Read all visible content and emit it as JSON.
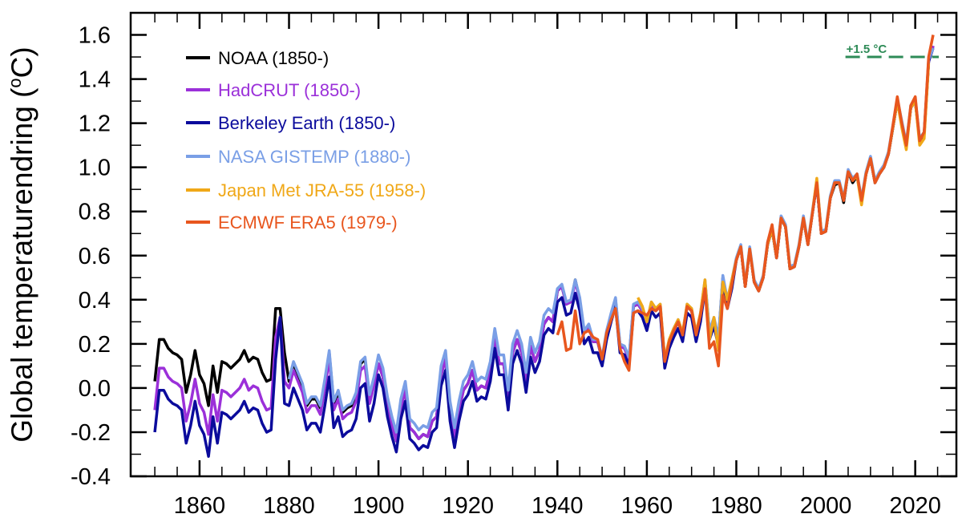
{
  "chart_data": {
    "type": "line",
    "title": "",
    "xlabel": "",
    "ylabel": "Global temperaturendring (",
    "ylabel_unit_sup": "o",
    "ylabel_unit": "C)",
    "xlim": [
      1844.6,
      2029.2
    ],
    "ylim": [
      -0.4,
      1.7
    ],
    "grid": false,
    "legend_position": "top-left",
    "x_ticks": [
      1860,
      1880,
      1900,
      1920,
      1940,
      1960,
      1980,
      2000,
      2020
    ],
    "x_tick_labels": [
      "1860",
      "1880",
      "1900",
      "1920",
      "1940",
      "1960",
      "1980",
      "2000",
      "2020"
    ],
    "y_ticks": [
      -0.4,
      -0.2,
      0.0,
      0.2,
      0.4,
      0.6,
      0.8,
      1.0,
      1.2,
      1.4,
      1.6
    ],
    "y_tick_labels": [
      "-0.4",
      "-0.2",
      "0.0",
      "0.2",
      "0.4",
      "0.6",
      "0.8",
      "1.0",
      "1.2",
      "1.4",
      "1.6"
    ],
    "annotation": {
      "text": "+1.5 °C",
      "y": 1.5,
      "x_start": 2004.4,
      "color": "#2e8b57"
    },
    "series": [
      {
        "name": "NOAA (1850-)",
        "color": "#000000",
        "start_year": 1850,
        "values": [
          0.03,
          0.22,
          0.22,
          0.18,
          0.16,
          0.15,
          0.13,
          -0.02,
          0.06,
          0.17,
          0.06,
          0.02,
          -0.08,
          0.1,
          -0.02,
          0.12,
          0.11,
          0.09,
          0.11,
          0.13,
          0.17,
          0.12,
          0.14,
          0.13,
          0.07,
          0.03,
          0.04,
          0.36,
          0.36,
          0.16,
          0.03,
          0.11,
          0.06,
          0.01,
          -0.08,
          -0.05,
          -0.05,
          -0.09,
          0.03,
          0.16,
          -0.07,
          -0.02,
          -0.11,
          -0.09,
          -0.08,
          -0.03,
          0.11,
          0.13,
          -0.04,
          0.04,
          0.11,
          0.05,
          -0.08,
          -0.17,
          -0.24,
          -0.09,
          -0.01,
          -0.18,
          -0.2,
          -0.23,
          -0.21,
          -0.22,
          -0.15,
          -0.13,
          0.06,
          0.13,
          -0.1,
          -0.22,
          -0.1,
          -0.01,
          0.02,
          0.08,
          -0.01,
          0.01,
          0.0,
          0.08,
          0.23,
          0.11,
          0.11,
          -0.05,
          0.16,
          0.22,
          0.16,
          0.03,
          0.19,
          0.12,
          0.17,
          0.29,
          0.32,
          0.3,
          0.44,
          0.46,
          0.38,
          0.39,
          0.49,
          0.4,
          0.25,
          0.28,
          0.21,
          0.21,
          0.13,
          0.25,
          0.33,
          0.4,
          0.19,
          0.18,
          0.13,
          0.37,
          0.38,
          0.35,
          0.29,
          0.38,
          0.35,
          0.37,
          0.12,
          0.21,
          0.26,
          0.3,
          0.24,
          0.37,
          0.35,
          0.24,
          0.33,
          0.48,
          0.25,
          0.31,
          0.22,
          0.5,
          0.39,
          0.48,
          0.58,
          0.64,
          0.46,
          0.63,
          0.48,
          0.44,
          0.5,
          0.65,
          0.72,
          0.59,
          0.77,
          0.73,
          0.54,
          0.55,
          0.64,
          0.77,
          0.65,
          0.79,
          0.93,
          0.7,
          0.71,
          0.86,
          0.92,
          0.93,
          0.84,
          0.98,
          0.93,
          0.96,
          0.85,
          0.97,
          1.04,
          0.93,
          0.97,
          1.0,
          1.06,
          1.18,
          1.3,
          1.2,
          1.1,
          1.27,
          1.3,
          1.12,
          1.15,
          1.48,
          1.55
        ]
      },
      {
        "name": "HadCRUT (1850-)",
        "color": "#9b30d9",
        "start_year": 1850,
        "values": [
          -0.1,
          0.09,
          0.09,
          0.05,
          0.03,
          0.02,
          0.0,
          -0.15,
          -0.07,
          0.04,
          -0.07,
          -0.11,
          -0.21,
          -0.03,
          -0.15,
          -0.01,
          -0.02,
          -0.04,
          -0.02,
          0.0,
          0.04,
          -0.01,
          0.01,
          0.0,
          -0.06,
          -0.1,
          -0.09,
          0.23,
          0.32,
          0.03,
          0.0,
          0.08,
          0.03,
          -0.02,
          -0.11,
          -0.08,
          -0.08,
          -0.12,
          0.0,
          0.13,
          -0.1,
          -0.05,
          -0.14,
          -0.12,
          -0.11,
          -0.06,
          0.08,
          0.1,
          -0.07,
          0.01,
          0.11,
          0.05,
          -0.08,
          -0.17,
          -0.24,
          -0.09,
          -0.01,
          -0.18,
          -0.2,
          -0.23,
          -0.21,
          -0.22,
          -0.15,
          -0.13,
          0.06,
          0.13,
          -0.1,
          -0.22,
          -0.1,
          -0.01,
          0.02,
          0.08,
          -0.01,
          0.01,
          0.0,
          0.08,
          0.23,
          0.11,
          0.11,
          -0.05,
          0.16,
          0.22,
          0.16,
          0.03,
          0.19,
          0.12,
          0.17,
          0.29,
          0.32,
          0.3,
          0.44,
          0.46,
          0.38,
          0.39,
          0.48,
          0.4,
          0.25,
          0.28,
          0.21,
          0.21,
          0.13,
          0.25,
          0.33,
          0.4,
          0.19,
          0.18,
          0.13,
          0.37,
          0.38,
          0.35,
          0.29,
          0.38,
          0.35,
          0.37,
          0.12,
          0.21,
          0.26,
          0.3,
          0.24,
          0.37,
          0.35,
          0.24,
          0.33,
          0.48,
          0.25,
          0.31,
          0.22,
          0.5,
          0.39,
          0.48,
          0.58,
          0.64,
          0.46,
          0.63,
          0.48,
          0.44,
          0.5,
          0.65,
          0.72,
          0.59,
          0.77,
          0.73,
          0.54,
          0.55,
          0.64,
          0.77,
          0.65,
          0.79,
          0.93,
          0.7,
          0.71,
          0.86,
          0.93,
          0.93,
          0.85,
          0.98,
          0.94,
          0.96,
          0.85,
          0.97,
          1.04,
          0.93,
          0.97,
          1.0,
          1.06,
          1.18,
          1.3,
          1.2,
          1.1,
          1.27,
          1.3,
          1.12,
          1.15,
          1.48,
          1.55
        ]
      },
      {
        "name": "Berkeley Earth (1850-)",
        "color": "#0b0b9c",
        "start_year": 1850,
        "values": [
          -0.2,
          -0.01,
          -0.01,
          -0.05,
          -0.07,
          -0.08,
          -0.1,
          -0.25,
          -0.17,
          -0.06,
          -0.17,
          -0.21,
          -0.31,
          -0.13,
          -0.25,
          -0.11,
          -0.12,
          -0.14,
          -0.12,
          -0.1,
          -0.06,
          -0.11,
          -0.09,
          -0.1,
          -0.16,
          -0.2,
          -0.19,
          0.13,
          0.32,
          -0.07,
          -0.08,
          0.0,
          -0.05,
          -0.1,
          -0.19,
          -0.16,
          -0.16,
          -0.2,
          -0.08,
          0.05,
          -0.18,
          -0.13,
          -0.22,
          -0.2,
          -0.19,
          -0.14,
          0.0,
          0.02,
          -0.15,
          -0.07,
          0.06,
          0.0,
          -0.13,
          -0.22,
          -0.29,
          -0.14,
          -0.06,
          -0.23,
          -0.25,
          -0.28,
          -0.26,
          -0.27,
          -0.2,
          -0.18,
          0.01,
          0.08,
          -0.15,
          -0.27,
          -0.15,
          -0.06,
          -0.03,
          0.03,
          -0.06,
          -0.04,
          -0.05,
          0.03,
          0.18,
          0.06,
          0.06,
          -0.1,
          0.11,
          0.17,
          0.11,
          -0.02,
          0.14,
          0.07,
          0.12,
          0.24,
          0.27,
          0.25,
          0.39,
          0.41,
          0.33,
          0.34,
          0.43,
          0.35,
          0.2,
          0.23,
          0.16,
          0.16,
          0.1,
          0.22,
          0.3,
          0.37,
          0.16,
          0.15,
          0.1,
          0.34,
          0.35,
          0.32,
          0.26,
          0.35,
          0.32,
          0.34,
          0.09,
          0.18,
          0.23,
          0.27,
          0.21,
          0.34,
          0.32,
          0.21,
          0.3,
          0.45,
          0.22,
          0.28,
          0.19,
          0.47,
          0.36,
          0.45,
          0.58,
          0.64,
          0.46,
          0.63,
          0.48,
          0.44,
          0.5,
          0.65,
          0.72,
          0.59,
          0.77,
          0.73,
          0.54,
          0.55,
          0.64,
          0.77,
          0.65,
          0.79,
          0.93,
          0.7,
          0.71,
          0.86,
          0.93,
          0.93,
          0.85,
          0.98,
          0.94,
          0.96,
          0.85,
          0.97,
          1.04,
          0.93,
          0.97,
          1.0,
          1.06,
          1.18,
          1.3,
          1.2,
          1.1,
          1.27,
          1.3,
          1.12,
          1.15,
          1.48,
          1.54
        ]
      },
      {
        "name": "NASA GISTEMP (1880-)",
        "color": "#7a9fe6",
        "start_year": 1880,
        "values": [
          0.04,
          0.12,
          0.07,
          0.02,
          -0.07,
          -0.04,
          -0.04,
          -0.08,
          0.04,
          0.17,
          -0.06,
          -0.01,
          -0.1,
          -0.08,
          -0.07,
          -0.02,
          0.12,
          0.14,
          -0.03,
          0.05,
          0.15,
          0.09,
          -0.04,
          -0.13,
          -0.2,
          -0.05,
          0.03,
          -0.14,
          -0.16,
          -0.19,
          -0.17,
          -0.18,
          -0.11,
          -0.09,
          0.1,
          0.17,
          -0.06,
          -0.18,
          -0.06,
          0.03,
          0.06,
          0.12,
          0.03,
          0.05,
          0.04,
          0.12,
          0.27,
          0.15,
          0.15,
          -0.01,
          0.2,
          0.26,
          0.2,
          0.07,
          0.23,
          0.16,
          0.21,
          0.33,
          0.36,
          0.34,
          0.45,
          0.47,
          0.39,
          0.4,
          0.49,
          0.41,
          0.26,
          0.29,
          0.22,
          0.22,
          0.14,
          0.26,
          0.34,
          0.41,
          0.2,
          0.19,
          0.14,
          0.38,
          0.39,
          0.36,
          0.3,
          0.39,
          0.36,
          0.38,
          0.13,
          0.22,
          0.27,
          0.31,
          0.25,
          0.38,
          0.36,
          0.25,
          0.34,
          0.49,
          0.26,
          0.32,
          0.23,
          0.51,
          0.4,
          0.49,
          0.59,
          0.65,
          0.47,
          0.64,
          0.49,
          0.45,
          0.51,
          0.66,
          0.73,
          0.6,
          0.78,
          0.74,
          0.55,
          0.56,
          0.65,
          0.78,
          0.66,
          0.8,
          0.94,
          0.71,
          0.72,
          0.87,
          0.94,
          0.94,
          0.86,
          0.99,
          0.95,
          0.97,
          0.86,
          0.98,
          1.05,
          0.94,
          0.98,
          1.01,
          1.07,
          1.19,
          1.31,
          1.21,
          1.11,
          1.28,
          1.31,
          1.13,
          1.16,
          1.49,
          1.54
        ]
      },
      {
        "name": "Japan Met JRA-55 (1958-)",
        "color": "#f0a818",
        "start_year": 1958,
        "values": [
          0.41,
          0.37,
          0.3,
          0.39,
          0.36,
          0.38,
          0.13,
          0.22,
          0.27,
          0.31,
          0.25,
          0.38,
          0.36,
          0.25,
          0.34,
          0.49,
          0.22,
          0.32,
          0.17,
          0.48,
          0.4,
          0.49,
          0.58,
          0.64,
          0.46,
          0.63,
          0.48,
          0.44,
          0.5,
          0.65,
          0.72,
          0.59,
          0.77,
          0.73,
          0.54,
          0.55,
          0.64,
          0.77,
          0.65,
          0.79,
          0.95,
          0.7,
          0.71,
          0.86,
          0.93,
          0.93,
          0.85,
          0.98,
          0.94,
          0.96,
          0.83,
          0.97,
          1.04,
          0.93,
          0.97,
          1.0,
          1.06,
          1.18,
          1.3,
          1.18,
          1.08,
          1.27,
          1.3,
          1.1,
          1.13,
          1.47
        ]
      },
      {
        "name": "ECMWF ERA5 (1979-)",
        "color": "#e8561e",
        "start_year": 1940,
        "values": [
          0.24,
          0.3,
          0.17,
          0.18,
          0.35,
          0.2,
          0.25,
          0.26,
          0.23,
          0.22,
          0.13,
          0.25,
          0.31,
          0.36,
          0.18,
          0.12,
          0.08,
          0.34,
          0.35,
          0.34,
          0.33,
          0.36,
          0.35,
          0.37,
          0.12,
          0.21,
          0.26,
          0.3,
          0.24,
          0.37,
          0.35,
          0.24,
          0.33,
          0.45,
          0.18,
          0.21,
          0.1,
          0.42,
          0.36,
          0.47,
          0.58,
          0.64,
          0.46,
          0.63,
          0.48,
          0.44,
          0.5,
          0.66,
          0.74,
          0.59,
          0.77,
          0.73,
          0.54,
          0.55,
          0.64,
          0.77,
          0.65,
          0.79,
          0.93,
          0.7,
          0.71,
          0.86,
          0.93,
          0.93,
          0.85,
          0.98,
          0.94,
          0.97,
          0.85,
          0.97,
          1.04,
          0.93,
          0.97,
          1.0,
          1.06,
          1.19,
          1.32,
          1.2,
          1.1,
          1.28,
          1.32,
          1.12,
          1.16,
          1.5,
          1.6
        ]
      }
    ]
  }
}
